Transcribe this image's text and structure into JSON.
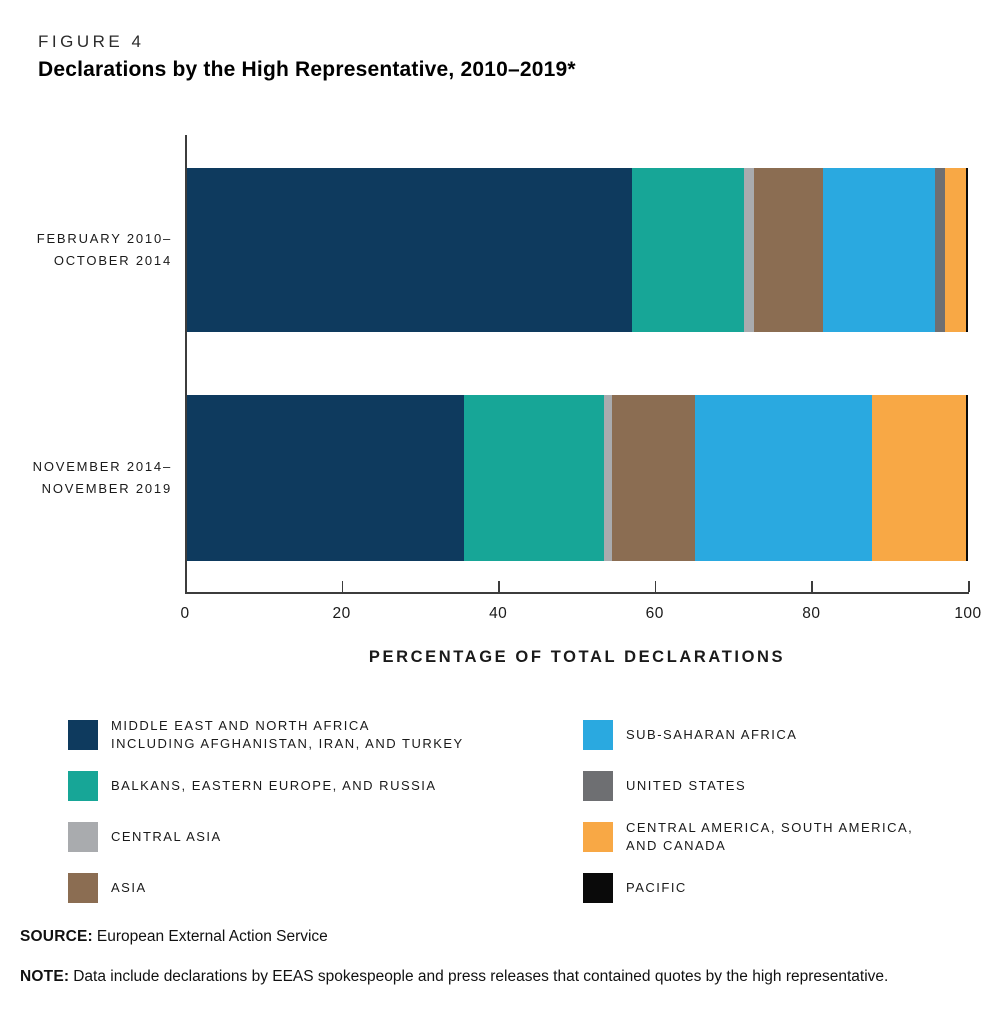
{
  "header": {
    "figure_label": "FIGURE 4",
    "title": "Declarations by the High Representative, 2010–2019*"
  },
  "chart_data": {
    "type": "bar",
    "stacked": true,
    "orientation": "horizontal",
    "title": "Declarations by the High Representative, 2010–2019*",
    "xlabel": "PERCENTAGE OF TOTAL DECLARATIONS",
    "xlim": [
      0,
      100
    ],
    "x_ticks": [
      "0",
      "20",
      "40",
      "60",
      "80",
      "100"
    ],
    "grid": false,
    "categories": [
      "FEBRUARY 2010–OCTOBER 2014",
      "NOVEMBER 2014–NOVEMBER 2019"
    ],
    "category_lines": [
      [
        "FEBRUARY 2010–",
        "OCTOBER 2014"
      ],
      [
        "NOVEMBER 2014–",
        "NOVEMBER 2019"
      ]
    ],
    "series": [
      {
        "name": "MIDDLE EAST AND NORTH AFRICA INCLUDING AFGHANISTAN, IRAN, AND TURKEY",
        "color": "#0e3a5e",
        "values": [
          57.0,
          35.5
        ]
      },
      {
        "name": "BALKANS, EASTERN EUROPE, AND RUSSIA",
        "color": "#17a697",
        "values": [
          14.3,
          17.9
        ]
      },
      {
        "name": "CENTRAL ASIA",
        "color": "#a9abae",
        "values": [
          1.3,
          1.0
        ]
      },
      {
        "name": "ASIA",
        "color": "#8b6d52",
        "values": [
          8.9,
          10.7
        ]
      },
      {
        "name": "SUB-SAHARAN AFRICA",
        "color": "#2aa9e0",
        "values": [
          14.3,
          22.6
        ]
      },
      {
        "name": "UNITED STATES",
        "color": "#6e6f72",
        "values": [
          1.2,
          0.0
        ]
      },
      {
        "name": "CENTRAL AMERICA, SOUTH AMERICA, AND CANADA",
        "color": "#f8a845",
        "values": [
          2.7,
          12.0
        ]
      },
      {
        "name": "PACIFIC",
        "color": "#0a0a0a",
        "values": [
          0.3,
          0.3
        ]
      }
    ]
  },
  "legend": {
    "columns": [
      [
        {
          "lines": [
            "MIDDLE EAST AND NORTH AFRICA",
            "INCLUDING AFGHANISTAN, IRAN, AND TURKEY"
          ],
          "color": "#0e3a5e"
        },
        {
          "lines": [
            "BALKANS, EASTERN EUROPE, AND RUSSIA"
          ],
          "color": "#17a697"
        },
        {
          "lines": [
            "CENTRAL ASIA"
          ],
          "color": "#a9abae"
        },
        {
          "lines": [
            "ASIA"
          ],
          "color": "#8b6d52"
        }
      ],
      [
        {
          "lines": [
            "SUB-SAHARAN AFRICA"
          ],
          "color": "#2aa9e0"
        },
        {
          "lines": [
            "UNITED STATES"
          ],
          "color": "#6e6f72"
        },
        {
          "lines": [
            "CENTRAL AMERICA, SOUTH AMERICA,",
            "AND CANADA"
          ],
          "color": "#f8a845"
        },
        {
          "lines": [
            "PACIFIC"
          ],
          "color": "#0a0a0a"
        }
      ]
    ]
  },
  "footer": {
    "source_label": "SOURCE:",
    "source_text": "European External Action Service",
    "note_label": "NOTE:",
    "note_text": "Data include declarations by EEAS spokespeople and press releases that contained quotes by the high representative."
  }
}
